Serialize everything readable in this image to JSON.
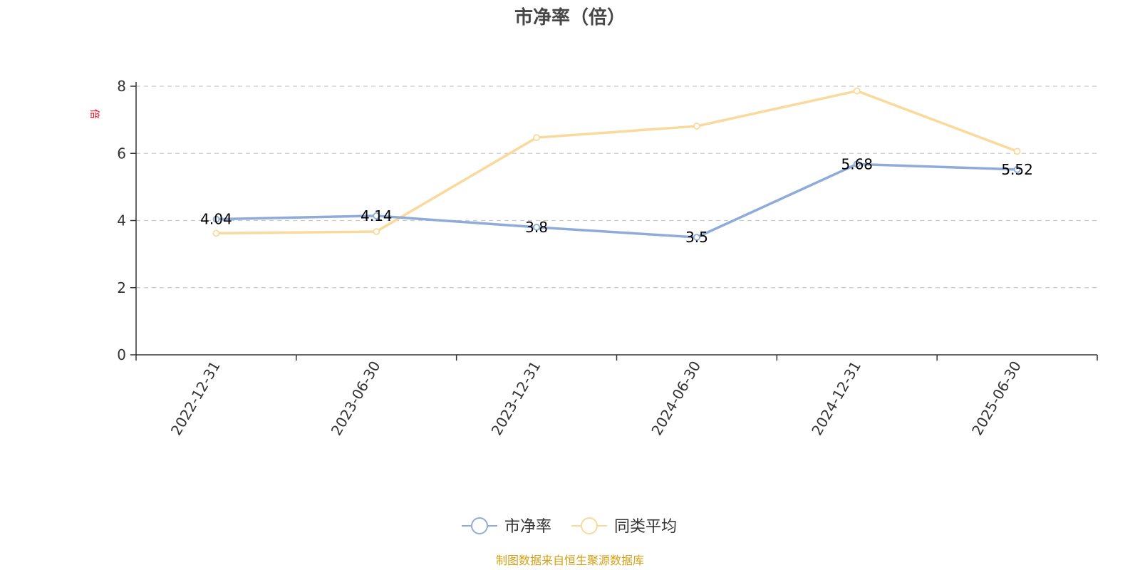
{
  "title": "市净率（倍）",
  "unit_label": "倍",
  "source_note": "制图数据来自恒生聚源数据库",
  "colors": {
    "series_main": "#8eabd9",
    "series_avg": "#fad99c",
    "axis": "#333333",
    "grid": "#cccccc",
    "unit": "#e60012",
    "source": "#d4a017"
  },
  "chart_data": {
    "type": "line",
    "title": "市净率（倍）",
    "ylabel": "倍",
    "xlabel": "",
    "categories": [
      "2022-12-31",
      "2023-06-30",
      "2023-12-31",
      "2024-06-30",
      "2024-12-31",
      "2025-06-30"
    ],
    "ylim": [
      0,
      8
    ],
    "yticks": [
      0,
      2,
      4,
      6,
      8
    ],
    "grid": true,
    "legend_position": "bottom",
    "series": [
      {
        "name": "市净率",
        "values": [
          4.04,
          4.14,
          3.8,
          3.5,
          5.68,
          5.52
        ],
        "show_labels": true
      },
      {
        "name": "同类平均",
        "values": [
          3.62,
          3.67,
          6.47,
          6.81,
          7.86,
          6.06
        ],
        "show_labels": false
      }
    ]
  }
}
